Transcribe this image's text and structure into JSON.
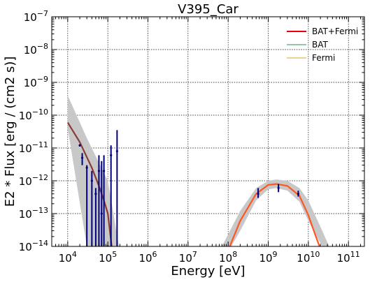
{
  "chart_data": {
    "type": "line",
    "title": "V395_Car",
    "xlabel": "Energy [eV]",
    "ylabel": "E2 * Flux [erg / (cm2 s)]",
    "x_scale": "log",
    "y_scale": "log",
    "xlim": [
      4000,
      250000000000.0
    ],
    "ylim": [
      1e-14,
      1e-07
    ],
    "grid": true,
    "legend_position": "top-right",
    "x_ticks": [
      {
        "base": "10",
        "exp": "4",
        "value": 10000.0
      },
      {
        "base": "10",
        "exp": "5",
        "value": 100000.0
      },
      {
        "base": "10",
        "exp": "6",
        "value": 1000000.0
      },
      {
        "base": "10",
        "exp": "7",
        "value": 10000000.0
      },
      {
        "base": "10",
        "exp": "8",
        "value": 100000000.0
      },
      {
        "base": "10",
        "exp": "9",
        "value": 1000000000.0
      },
      {
        "base": "10",
        "exp": "10",
        "value": 10000000000.0
      },
      {
        "base": "10",
        "exp": "11",
        "value": 100000000000.0
      }
    ],
    "y_ticks": [
      {
        "base": "10",
        "exp": "−14",
        "value": 1e-14
      },
      {
        "base": "10",
        "exp": "−13",
        "value": 1e-13
      },
      {
        "base": "10",
        "exp": "−12",
        "value": 1e-12
      },
      {
        "base": "10",
        "exp": "−11",
        "value": 1e-11
      },
      {
        "base": "10",
        "exp": "−10",
        "value": 1e-10
      },
      {
        "base": "10",
        "exp": "−9",
        "value": 1e-09
      },
      {
        "base": "10",
        "exp": "−8",
        "value": 1e-08
      },
      {
        "base": "10",
        "exp": "−7",
        "value": 1e-07
      }
    ],
    "series": [
      {
        "name": "BAT+Fermi",
        "color": "#e8000b",
        "legend_line_width": 2
      },
      {
        "name": "BAT",
        "color": "#2e8b57",
        "legend_line_width": 1
      },
      {
        "name": "Fermi",
        "color": "#daa520",
        "legend_line_width": 1
      }
    ],
    "bat_model": {
      "color": "#8b3a3a",
      "x": [
        10000.0,
        20000.0,
        40000.0,
        60000.0,
        80000.0,
        100000.0,
        125000.0
      ],
      "y": [
        6e-11,
        1.5e-11,
        2.5e-12,
        7e-13,
        2.5e-13,
        1e-13,
        1e-14
      ]
    },
    "bat_band": {
      "color": "#c8c8c8",
      "x": [
        10000.0,
        30000.0,
        100000.0,
        190000.0,
        100000.0,
        30000.0,
        10000.0
      ],
      "y": [
        4e-10,
        2e-11,
        1e-12,
        1e-14,
        1e-14,
        1e-14,
        4e-11
      ]
    },
    "fermi_model": {
      "color": "#ff5722",
      "x": [
        110000000.0,
        200000000.0,
        500000000.0,
        1000000000.0,
        1600000000.0,
        3000000000.0,
        6000000000.0,
        10000000000.0,
        15000000000.0,
        19000000000.0
      ],
      "y": [
        1e-14,
        6e-14,
        4e-13,
        7.5e-13,
        8e-13,
        7e-13,
        3.5e-13,
        9e-14,
        2.2e-14,
        1e-14
      ]
    },
    "fermi_band": {
      "color": "#c8c8c8",
      "x": [
        70000000.0,
        200000000.0,
        500000000.0,
        1000000000.0,
        1600000000.0,
        3000000000.0,
        6000000000.0,
        10000000000.0,
        20000000000.0,
        33000000000.0,
        22000000000.0,
        10000000000.0,
        6000000000.0,
        3000000000.0,
        1600000000.0,
        1000000000.0,
        500000000.0,
        200000000.0,
        120000000.0
      ],
      "y": [
        1e-14,
        1.2e-13,
        6e-13,
        1e-12,
        1.1e-12,
        1e-12,
        6e-13,
        2.5e-13,
        4e-14,
        1e-14,
        1e-14,
        6e-14,
        2.3e-13,
        5e-13,
        6e-13,
        5.5e-13,
        2.5e-13,
        3e-14,
        1e-14
      ]
    },
    "bat_points": {
      "color": "#000080",
      "x": [
        20000.0,
        23000.0,
        30000.0,
        40000.0,
        50000.0,
        60000.0,
        70000.0,
        80000.0,
        100000.0,
        120000.0,
        170000.0
      ],
      "y": [
        1.2e-11,
        5e-12,
        2.5e-12,
        1e-12,
        4e-13,
        2e-12,
        1e-13,
        2e-12,
        1e-14,
        6e-12,
        8e-12
      ],
      "y_low": [
        1.1e-11,
        3e-12,
        1e-14,
        1e-14,
        1e-14,
        1e-14,
        1e-14,
        1e-14,
        1e-14,
        1e-14,
        1e-14
      ],
      "y_high": [
        1.3e-11,
        7e-12,
        3e-12,
        2e-12,
        6e-13,
        6e-12,
        4e-12,
        6e-12,
        1e-14,
        1.2e-11,
        3.5e-11
      ]
    },
    "fermi_points": {
      "color": "#000080",
      "x": [
        560000000.0,
        1800000000.0,
        5600000000.0
      ],
      "y": [
        4e-13,
        6e-13,
        4e-13
      ],
      "y_low": [
        3e-13,
        4.5e-13,
        3.3e-13
      ],
      "y_high": [
        6e-13,
        8e-13,
        5e-13
      ]
    }
  }
}
